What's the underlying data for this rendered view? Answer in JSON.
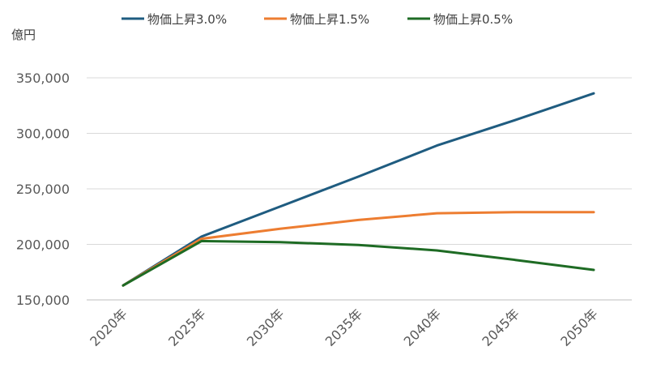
{
  "chart_data": {
    "type": "line",
    "ylabel": "億円",
    "categories": [
      "2020年",
      "2025年",
      "2030年",
      "2035年",
      "2040年",
      "2045年",
      "2050年"
    ],
    "ylim": [
      150000,
      350000
    ],
    "yticks": [
      "150,000",
      "200,000",
      "250,000",
      "300,000",
      "350,000"
    ],
    "ytick_values": [
      150000,
      200000,
      250000,
      300000,
      350000
    ],
    "grid": true,
    "legend_position": "top",
    "series": [
      {
        "name": "物価上昇3.0%",
        "color": "#1f5c80",
        "values": [
          163000,
          207000,
          234000,
          261000,
          289000,
          312000,
          336000
        ]
      },
      {
        "name": "物価上昇1.5%",
        "color": "#ed7d31",
        "values": [
          163000,
          205000,
          214000,
          222000,
          228000,
          229000,
          229000
        ]
      },
      {
        "name": "物価上昇0.5%",
        "color": "#1e6b24",
        "values": [
          163000,
          203000,
          202000,
          199500,
          194500,
          186000,
          177000
        ]
      }
    ]
  }
}
